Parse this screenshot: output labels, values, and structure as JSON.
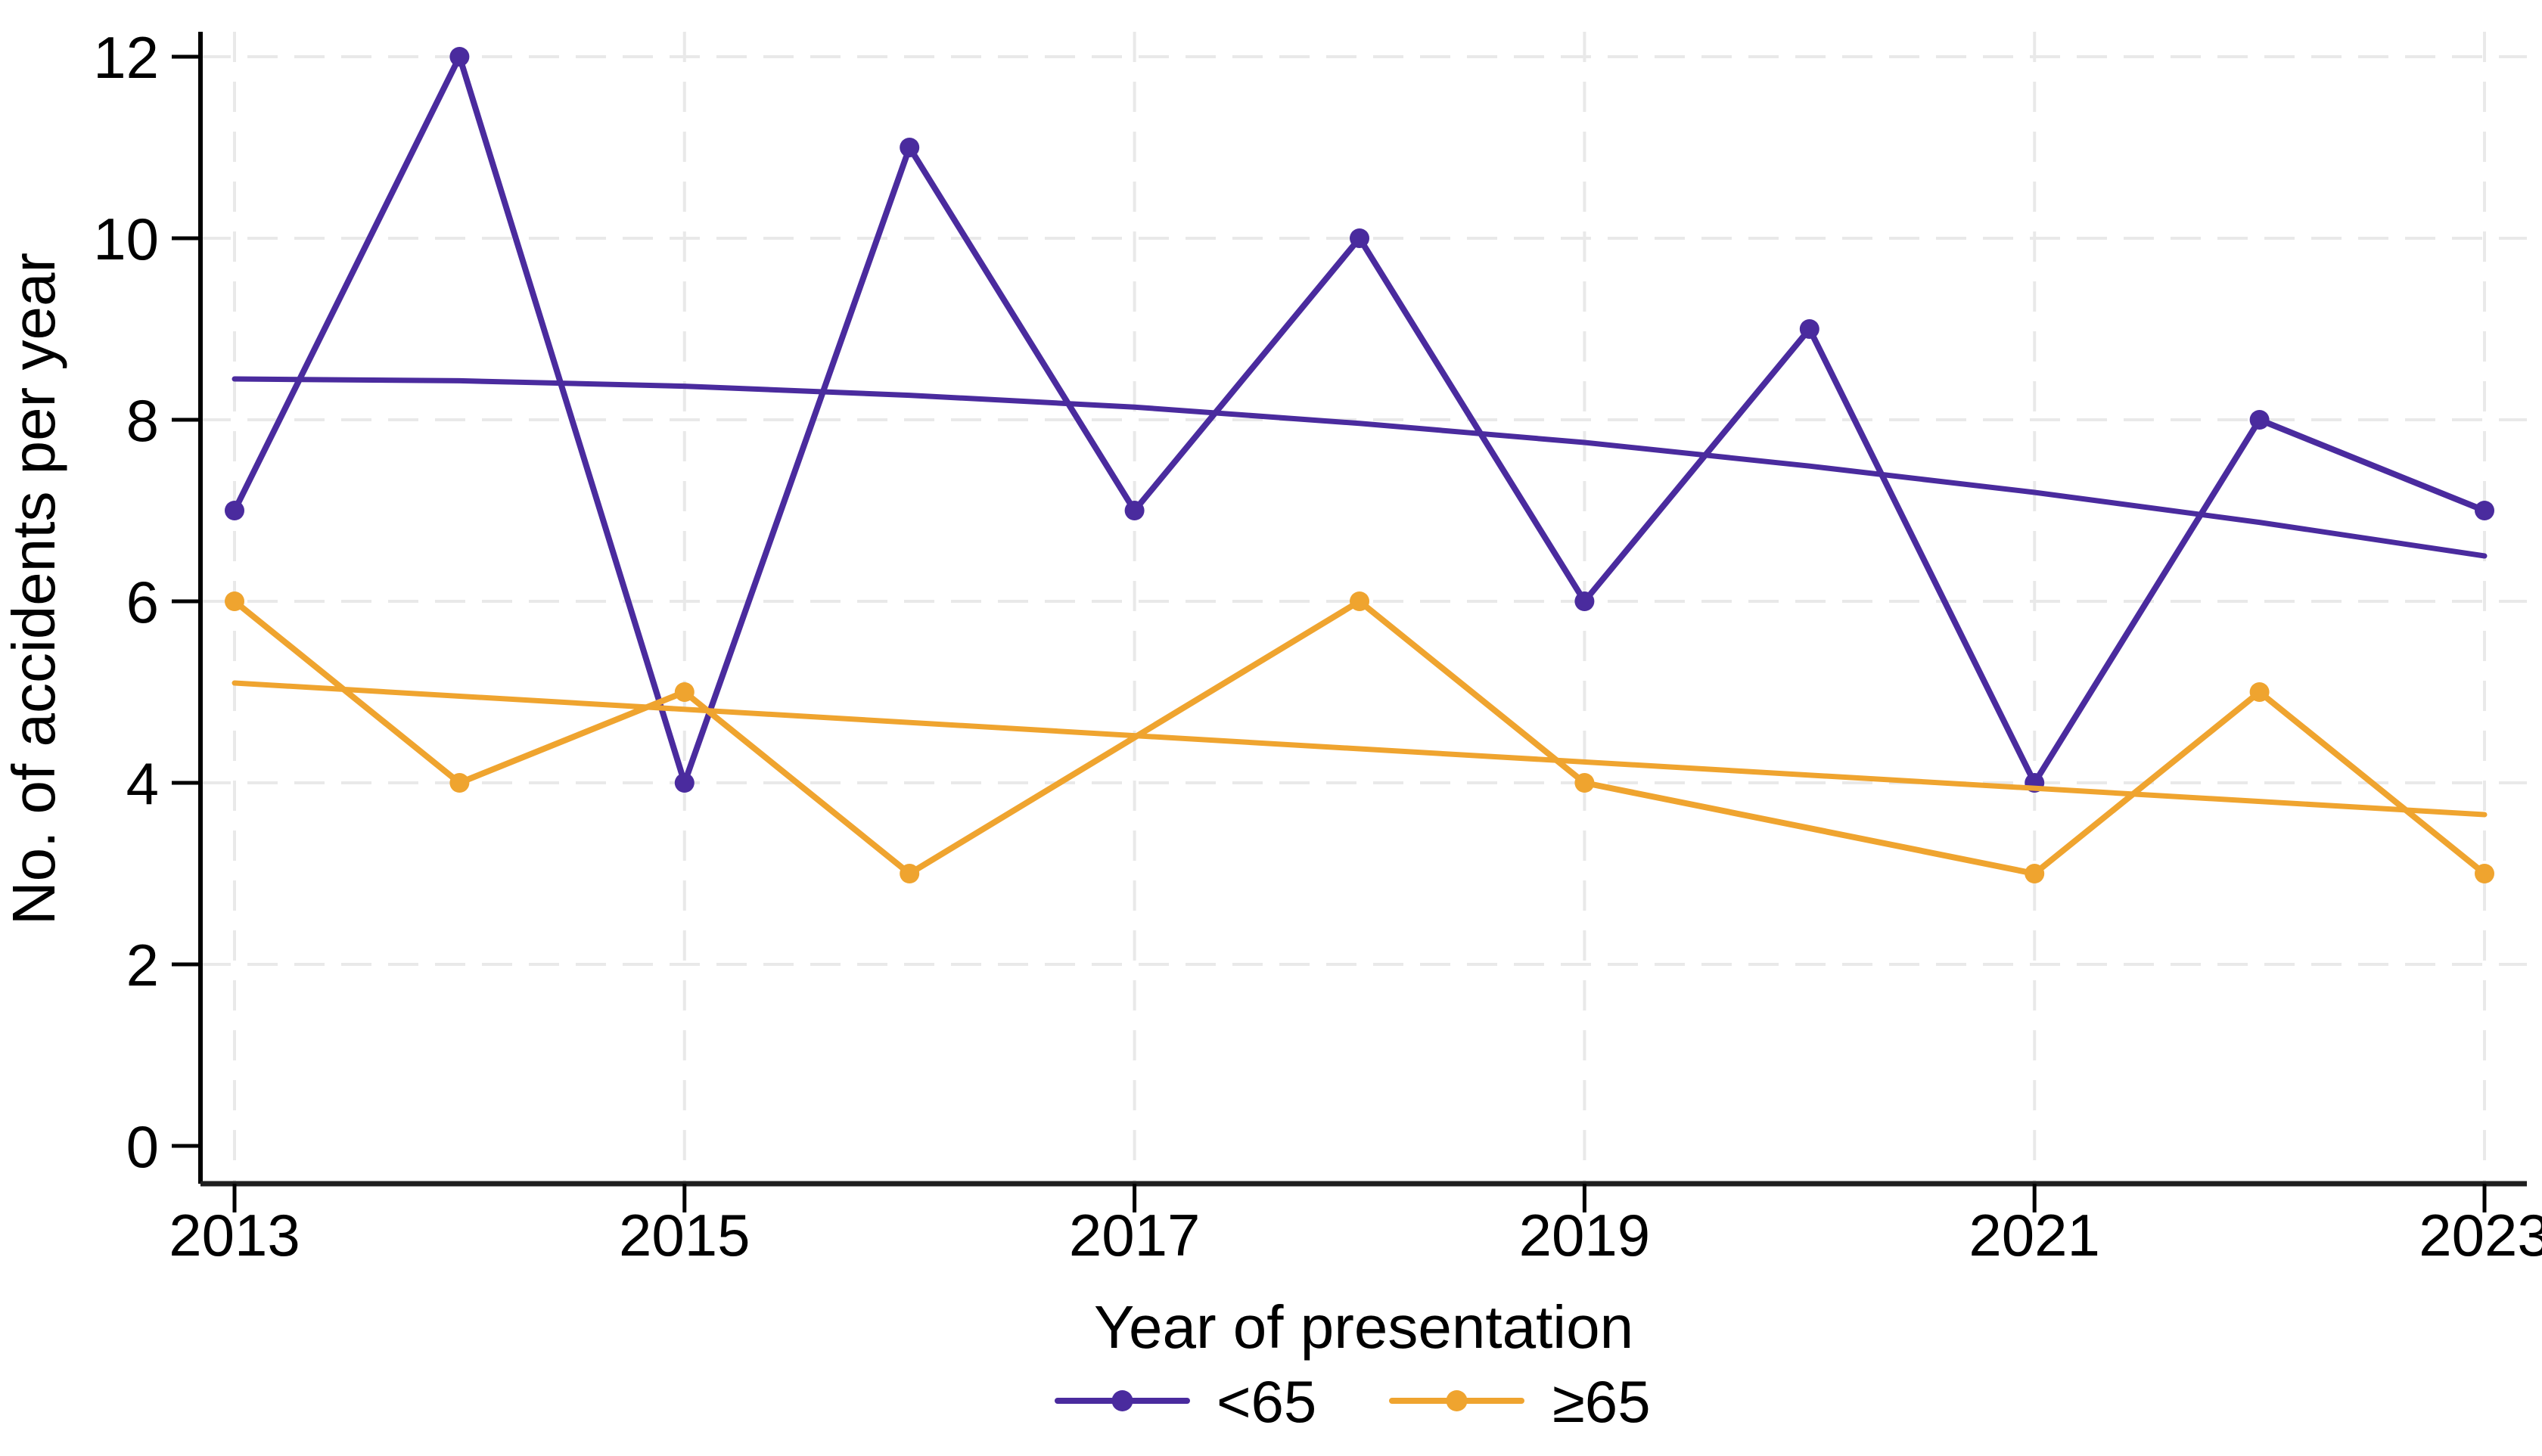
{
  "figure": {
    "background": "#ffffff"
  },
  "chart_data": {
    "type": "line",
    "title": "",
    "xlabel": "Year of presentation",
    "ylabel": "No. of accidents per year",
    "xlim": [
      2013,
      2023
    ],
    "ylim": [
      0,
      12
    ],
    "x_ticks": [
      2013,
      2015,
      2017,
      2019,
      2021,
      2023
    ],
    "y_ticks": [
      0,
      2,
      4,
      6,
      8,
      10,
      12
    ],
    "y_gridlines": [
      2,
      4,
      6,
      8,
      10,
      12
    ],
    "grid": "dashed light gray at labeled ticks, vertical and horizontal",
    "legend_position": "bottom-center",
    "colors": {
      "under65": "#4A2B9E",
      "over65": "#EFA42F",
      "gridline": "#E9E9E9",
      "axis": "#1F1F1F",
      "text": "#000000"
    },
    "series": [
      {
        "name": "<65",
        "color": "#4A2B9E",
        "points": [
          [
            2013,
            7
          ],
          [
            2014,
            12
          ],
          [
            2015,
            4
          ],
          [
            2016,
            11
          ],
          [
            2017,
            7
          ],
          [
            2018,
            10
          ],
          [
            2019,
            6
          ],
          [
            2020,
            9
          ],
          [
            2021,
            4
          ],
          [
            2022,
            8
          ],
          [
            2023,
            7
          ]
        ],
        "trend": {
          "type": "quadratic-fit",
          "points": [
            [
              2013,
              8.45
            ],
            [
              2014,
              8.43
            ],
            [
              2015,
              8.37
            ],
            [
              2016,
              8.27
            ],
            [
              2017,
              8.14
            ],
            [
              2018,
              7.96
            ],
            [
              2019,
              7.75
            ],
            [
              2020,
              7.49
            ],
            [
              2021,
              7.2
            ],
            [
              2022,
              6.87
            ],
            [
              2023,
              6.5
            ]
          ]
        }
      },
      {
        "name": "≥65",
        "color": "#EFA42F",
        "points": [
          [
            2013,
            6
          ],
          [
            2014,
            4
          ],
          [
            2015,
            5
          ],
          [
            2016,
            3
          ],
          [
            2018,
            6
          ],
          [
            2019,
            4
          ],
          [
            2021,
            3
          ],
          [
            2022,
            5
          ],
          [
            2023,
            3
          ]
        ],
        "trend": {
          "type": "linear-fit",
          "points": [
            [
              2013,
              5.1
            ],
            [
              2023,
              3.65
            ]
          ]
        }
      }
    ]
  },
  "legend": {
    "items": [
      {
        "label": "<65",
        "color": "#4A2B9E"
      },
      {
        "label": "≥65",
        "color": "#EFA42F"
      }
    ]
  }
}
